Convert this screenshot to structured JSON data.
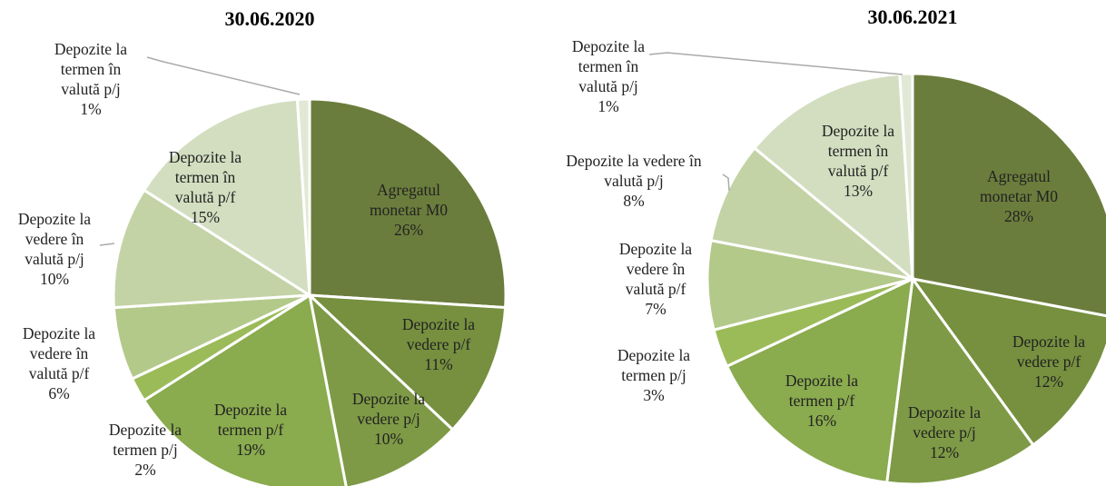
{
  "chart_data": [
    {
      "type": "pie",
      "title": "30.06.2020",
      "categories": [
        "Agregatul monetar M0",
        "Depozite la vedere p/f",
        "Depozite la vedere p/j",
        "Depozite la termen p/f",
        "Depozite la termen p/j",
        "Depozite la vedere în valută p/f",
        "Depozite la vedere în valută p/j",
        "Depozite la termen în valută p/f",
        "Depozite la termen în valută p/j"
      ],
      "values": [
        26,
        11,
        10,
        19,
        2,
        6,
        10,
        15,
        1
      ],
      "value_labels": [
        "26%",
        "11%",
        "10%",
        "19%",
        "2%",
        "6%",
        "10%",
        "15%",
        "1%"
      ],
      "colors": [
        "#6b7d3c",
        "#76903f",
        "#7e9a46",
        "#8aab4e",
        "#9bbb59",
        "#b3c98a",
        "#c3d3a5",
        "#d3dec0",
        "#e2e8d6"
      ]
    },
    {
      "type": "pie",
      "title": "30.06.2021",
      "categories": [
        "Agregatul monetar M0",
        "Depozite la vedere p/f",
        "Depozite la vedere p/j",
        "Depozite la termen p/f",
        "Depozite la termen p/j",
        "Depozite la vedere în valută p/f",
        "Depozite la vedere în valută p/j",
        "Depozite la termen în valută p/f",
        "Depozite la termen în valută p/j"
      ],
      "values": [
        28,
        12,
        12,
        16,
        3,
        7,
        8,
        13,
        1
      ],
      "value_labels": [
        "28%",
        "12%",
        "12%",
        "16%",
        "3%",
        "7%",
        "8%",
        "13%",
        "1%"
      ],
      "colors": [
        "#6b7d3c",
        "#76903f",
        "#7e9a46",
        "#8aab4e",
        "#9bbb59",
        "#b3c98a",
        "#c3d3a5",
        "#d3dec0",
        "#e2e8d6"
      ]
    }
  ]
}
